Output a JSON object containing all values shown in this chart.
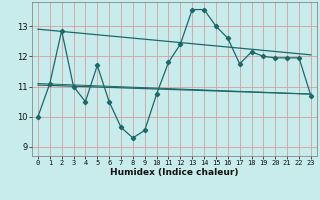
{
  "title": "",
  "xlabel": "Humidex (Indice chaleur)",
  "bg_color": "#c8ecec",
  "grid_color": "#d4a0a0",
  "line_color": "#1a6868",
  "xlim": [
    -0.5,
    23.5
  ],
  "ylim": [
    8.7,
    13.8
  ],
  "xticks": [
    0,
    1,
    2,
    3,
    4,
    5,
    6,
    7,
    8,
    9,
    10,
    11,
    12,
    13,
    14,
    15,
    16,
    17,
    18,
    19,
    20,
    21,
    22,
    23
  ],
  "yticks": [
    9,
    10,
    11,
    12,
    13
  ],
  "main_x": [
    0,
    1,
    2,
    3,
    4,
    5,
    6,
    7,
    8,
    9,
    10,
    11,
    12,
    13,
    14,
    15,
    16,
    17,
    18,
    19,
    20,
    21,
    22,
    23
  ],
  "main_y": [
    10.0,
    11.1,
    12.85,
    11.0,
    10.5,
    11.7,
    10.5,
    9.65,
    9.3,
    9.55,
    10.75,
    11.8,
    12.4,
    13.55,
    13.55,
    13.0,
    12.6,
    11.75,
    12.15,
    12.0,
    11.95,
    11.95,
    11.95,
    10.7
  ],
  "trend1_x": [
    0,
    23
  ],
  "trend1_y": [
    12.9,
    12.05
  ],
  "trend2_x": [
    0,
    23
  ],
  "trend2_y": [
    11.05,
    10.75
  ],
  "trend3_x": [
    0,
    23
  ],
  "trend3_y": [
    11.1,
    10.75
  ]
}
